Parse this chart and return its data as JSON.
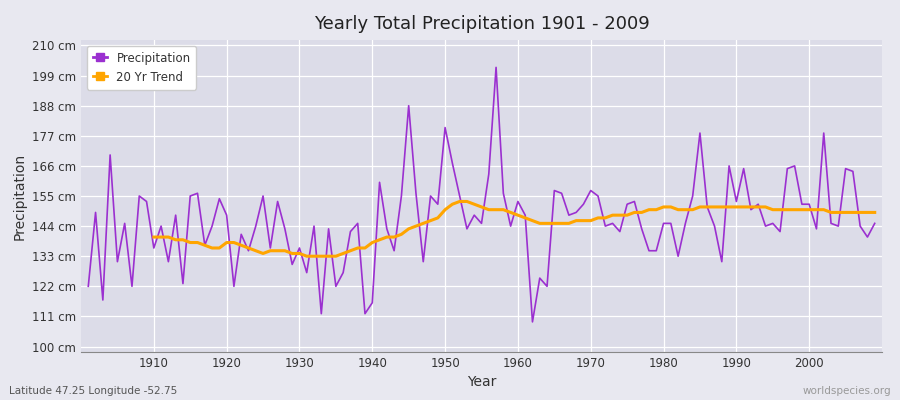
{
  "title": "Yearly Total Precipitation 1901 - 2009",
  "xlabel": "Year",
  "ylabel": "Precipitation",
  "subtitle": "Latitude 47.25 Longitude -52.75",
  "watermark": "worldspecies.org",
  "legend_labels": [
    "Precipitation",
    "20 Yr Trend"
  ],
  "precip_color": "#9B30D0",
  "trend_color": "#FFA500",
  "fig_bg_color": "#E8E8F0",
  "plot_bg_color": "#DCDCE8",
  "years": [
    1901,
    1902,
    1903,
    1904,
    1905,
    1906,
    1907,
    1908,
    1909,
    1910,
    1911,
    1912,
    1913,
    1914,
    1915,
    1916,
    1917,
    1918,
    1919,
    1920,
    1921,
    1922,
    1923,
    1924,
    1925,
    1926,
    1927,
    1928,
    1929,
    1930,
    1931,
    1932,
    1933,
    1934,
    1935,
    1936,
    1937,
    1938,
    1939,
    1940,
    1941,
    1942,
    1943,
    1944,
    1945,
    1946,
    1947,
    1948,
    1949,
    1950,
    1951,
    1952,
    1953,
    1954,
    1955,
    1956,
    1957,
    1958,
    1959,
    1960,
    1961,
    1962,
    1963,
    1964,
    1965,
    1966,
    1967,
    1968,
    1969,
    1970,
    1971,
    1972,
    1973,
    1974,
    1975,
    1976,
    1977,
    1978,
    1979,
    1980,
    1981,
    1982,
    1983,
    1984,
    1985,
    1986,
    1987,
    1988,
    1989,
    1990,
    1991,
    1992,
    1993,
    1994,
    1995,
    1996,
    1997,
    1998,
    1999,
    2000,
    2001,
    2002,
    2003,
    2004,
    2005,
    2006,
    2007,
    2008,
    2009
  ],
  "precip": [
    122,
    149,
    117,
    170,
    131,
    145,
    122,
    155,
    153,
    136,
    144,
    131,
    148,
    123,
    155,
    156,
    137,
    144,
    154,
    148,
    122,
    141,
    135,
    144,
    155,
    136,
    153,
    143,
    130,
    136,
    127,
    144,
    112,
    143,
    122,
    127,
    142,
    145,
    112,
    116,
    160,
    143,
    135,
    155,
    188,
    156,
    131,
    155,
    152,
    180,
    167,
    155,
    143,
    148,
    145,
    163,
    202,
    156,
    144,
    153,
    148,
    109,
    125,
    122,
    157,
    156,
    148,
    149,
    152,
    157,
    155,
    144,
    145,
    142,
    152,
    153,
    143,
    135,
    135,
    145,
    145,
    133,
    145,
    155,
    178,
    151,
    144,
    131,
    166,
    153,
    165,
    150,
    152,
    144,
    145,
    142,
    165,
    166,
    152,
    152,
    143,
    178,
    145,
    144,
    165,
    164,
    144,
    140,
    145
  ],
  "trend": [
    null,
    null,
    null,
    null,
    null,
    null,
    null,
    null,
    null,
    140,
    140,
    140,
    139,
    139,
    138,
    138,
    137,
    136,
    136,
    138,
    138,
    137,
    136,
    135,
    134,
    135,
    135,
    135,
    134,
    134,
    133,
    133,
    133,
    133,
    133,
    134,
    135,
    136,
    136,
    138,
    139,
    140,
    140,
    141,
    143,
    144,
    145,
    146,
    147,
    150,
    152,
    153,
    153,
    152,
    151,
    150,
    150,
    150,
    149,
    148,
    147,
    146,
    145,
    145,
    145,
    145,
    145,
    146,
    146,
    146,
    147,
    147,
    148,
    148,
    148,
    149,
    149,
    150,
    150,
    151,
    151,
    150,
    150,
    150,
    151,
    151,
    151,
    151,
    151,
    151,
    151,
    151,
    151,
    151,
    150,
    150,
    150,
    150,
    150,
    150,
    150,
    150,
    149,
    149,
    149,
    149,
    149,
    149,
    149
  ],
  "yticks": [
    100,
    111,
    122,
    133,
    144,
    155,
    166,
    177,
    188,
    199,
    210
  ],
  "ytick_labels": [
    "100 cm",
    "111 cm",
    "122 cm",
    "133 cm",
    "144 cm",
    "155 cm",
    "166 cm",
    "177 cm",
    "188 cm",
    "199 cm",
    "210 cm"
  ],
  "ylim": [
    98,
    212
  ],
  "xlim": [
    1900,
    2010
  ],
  "xticks": [
    1910,
    1920,
    1930,
    1940,
    1950,
    1960,
    1970,
    1980,
    1990,
    2000
  ]
}
